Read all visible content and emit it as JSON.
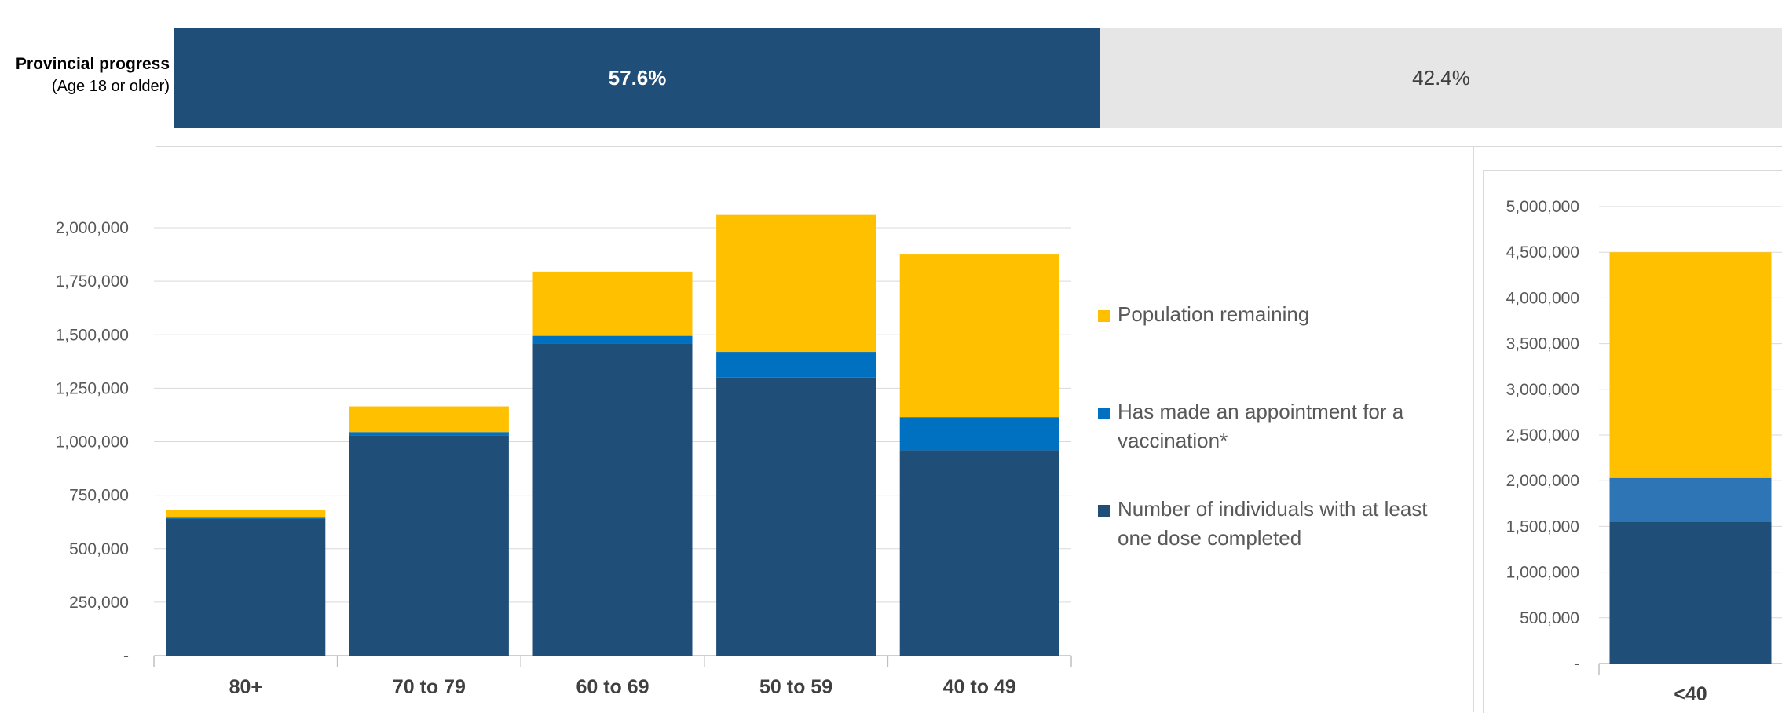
{
  "progress": {
    "label": "Provincial progress",
    "sublabel": "(Age 18 or older)",
    "completed_fraction": 0.576,
    "completed_text": "57.6%",
    "remaining_text": "42.4%",
    "colors": {
      "completed": "#1f4e79",
      "remaining": "#e6e6e6"
    }
  },
  "legend": [
    {
      "label": "Population remaining",
      "color": "#ffc000"
    },
    {
      "label": "Has made an appointment for a vaccination*",
      "color": "#0070c0"
    },
    {
      "label": "Number of individuals with at least one dose completed",
      "color": "#1f4e79"
    }
  ],
  "chart_data": [
    {
      "type": "bar",
      "stacked": true,
      "categories": [
        "80+",
        "70 to 79",
        "60 to 69",
        "50 to 59",
        "40 to 49"
      ],
      "series": [
        {
          "name": "Number of individuals with at least one dose completed",
          "color": "#1f4e79",
          "values": [
            640000,
            1030000,
            1460000,
            1300000,
            960000
          ]
        },
        {
          "name": "Has made an appointment for a vaccination*",
          "color": "#0070c0",
          "values": [
            5000,
            15000,
            35000,
            120000,
            155000
          ]
        },
        {
          "name": "Population remaining",
          "color": "#ffc000",
          "values": [
            35000,
            120000,
            300000,
            640000,
            760000
          ]
        }
      ],
      "ylim": [
        0,
        2000000
      ],
      "yticks": [
        0,
        250000,
        500000,
        750000,
        1000000,
        1250000,
        1500000,
        1750000,
        2000000
      ],
      "ytick_labels": [
        "-",
        "250,000",
        "500,000",
        "750,000",
        "1,000,000",
        "1,250,000",
        "1,500,000",
        "1,750,000",
        "2,000,000"
      ],
      "grid": true,
      "legend_position": "right"
    },
    {
      "type": "bar",
      "stacked": true,
      "categories": [
        "<40"
      ],
      "series": [
        {
          "name": "Number of individuals with at least one dose completed",
          "color": "#1f4e79",
          "values": [
            1550000
          ]
        },
        {
          "name": "Has made an appointment for a vaccination*",
          "color": "#2e75b6",
          "values": [
            480000
          ]
        },
        {
          "name": "Population remaining",
          "color": "#ffc000",
          "values": [
            2470000
          ]
        }
      ],
      "ylim": [
        0,
        5000000
      ],
      "yticks": [
        0,
        500000,
        1000000,
        1500000,
        2000000,
        2500000,
        3000000,
        3500000,
        4000000,
        4500000,
        5000000
      ],
      "ytick_labels": [
        "-",
        "500,000",
        "1,000,000",
        "1,500,000",
        "2,000,000",
        "2,500,000",
        "3,000,000",
        "3,500,000",
        "4,000,000",
        "4,500,000",
        "5,000,000"
      ],
      "grid": true
    }
  ]
}
